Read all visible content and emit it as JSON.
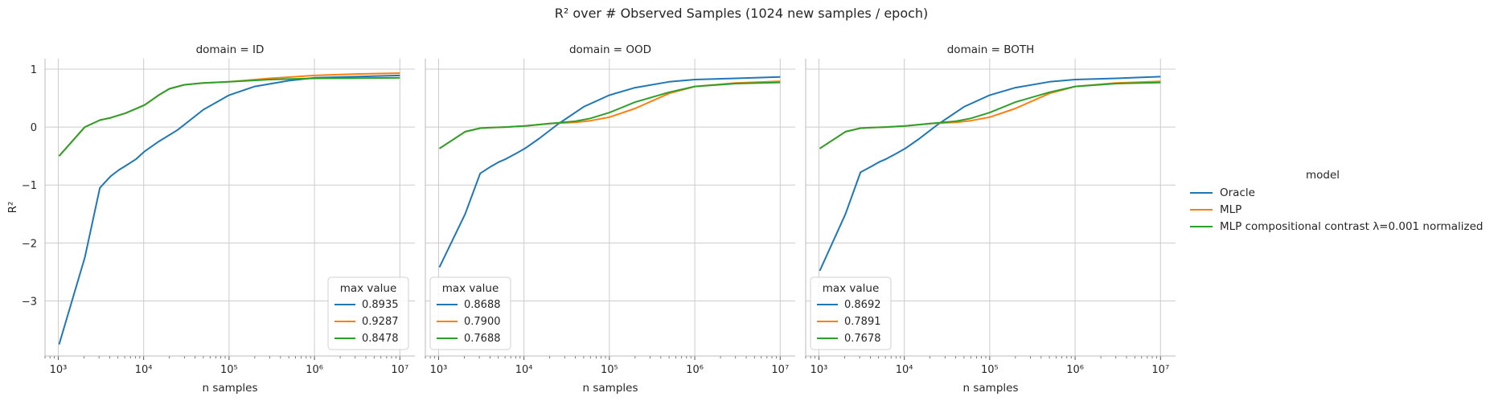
{
  "title": "R² over # Observed Samples (1024 new samples / epoch)",
  "legend": {
    "title": "model",
    "entries": [
      {
        "label": "Oracle",
        "color": "#1f77b4"
      },
      {
        "label": "MLP",
        "color": "#ff7f0e"
      },
      {
        "label": "MLP compositional contrast λ=0.001 normalized",
        "color": "#2ca02c"
      }
    ]
  },
  "colors": {
    "Oracle": "#1f77b4",
    "MLP": "#ff7f0e",
    "MLP compositional contrast λ=0.001 normalized": "#2ca02c",
    "grid": "#cccccc"
  },
  "chart_data": [
    {
      "type": "line",
      "title": "domain = ID",
      "xlabel": "n samples",
      "ylabel": "R²",
      "xscale": "log",
      "xlim": [
        700,
        15000000
      ],
      "ylim": [
        -3.95,
        1.18
      ],
      "xticks": [
        1000,
        10000,
        100000,
        1000000,
        10000000
      ],
      "xtick_labels": [
        "10³",
        "10⁴",
        "10⁵",
        "10⁶",
        "10⁷"
      ],
      "yticks": [
        1,
        0,
        -1,
        -2,
        -3
      ],
      "ytick_labels": [
        "1",
        "0",
        "−1",
        "−2",
        "−3"
      ],
      "grid": true,
      "inner_legend": {
        "title": "max value",
        "placement": "lower right",
        "values": [
          "0.8935",
          "0.9287",
          "0.8478"
        ]
      },
      "series": [
        {
          "name": "Oracle",
          "x": [
            1024,
            2048,
            3072,
            4096,
            5120,
            6144,
            8192,
            10240,
            15000,
            25000,
            50000,
            100000,
            200000,
            500000,
            1000000,
            3000000,
            10000000
          ],
          "y": [
            -3.75,
            -2.25,
            -1.05,
            -0.85,
            -0.74,
            -0.67,
            -0.55,
            -0.42,
            -0.25,
            -0.05,
            0.3,
            0.55,
            0.7,
            0.8,
            0.85,
            0.87,
            0.89
          ]
        },
        {
          "name": "MLP",
          "x": [
            1024,
            2048,
            3072,
            4096,
            6144,
            10240,
            15000,
            20000,
            30000,
            50000,
            100000,
            300000,
            1000000,
            3000000,
            10000000
          ],
          "y": [
            -0.5,
            0.0,
            0.12,
            0.16,
            0.24,
            0.38,
            0.55,
            0.66,
            0.73,
            0.76,
            0.78,
            0.84,
            0.89,
            0.915,
            0.93
          ]
        },
        {
          "name": "MLP compositional contrast λ=0.001 normalized",
          "x": [
            1024,
            2048,
            3072,
            4096,
            6144,
            10240,
            15000,
            20000,
            30000,
            50000,
            100000,
            300000,
            1000000,
            3000000,
            10000000
          ],
          "y": [
            -0.5,
            0.0,
            0.12,
            0.16,
            0.24,
            0.38,
            0.55,
            0.66,
            0.73,
            0.76,
            0.78,
            0.82,
            0.84,
            0.845,
            0.848
          ]
        }
      ]
    },
    {
      "type": "line",
      "title": "domain = OOD",
      "xlabel": "n samples",
      "ylabel": "",
      "xscale": "log",
      "xlim": [
        700,
        15000000
      ],
      "ylim": [
        -3.95,
        1.18
      ],
      "xticks": [
        1000,
        10000,
        100000,
        1000000,
        10000000
      ],
      "xtick_labels": [
        "10³",
        "10⁴",
        "10⁵",
        "10⁶",
        "10⁷"
      ],
      "yticks": [
        1,
        0,
        -1,
        -2,
        -3
      ],
      "ytick_labels": [],
      "grid": true,
      "inner_legend": {
        "title": "max value",
        "placement": "lower left",
        "values": [
          "0.8688",
          "0.7900",
          "0.7688"
        ]
      },
      "series": [
        {
          "name": "Oracle",
          "x": [
            1024,
            2048,
            3072,
            4096,
            5120,
            6144,
            8192,
            10240,
            15000,
            25000,
            50000,
            100000,
            200000,
            500000,
            1000000,
            3000000,
            10000000
          ],
          "y": [
            -2.42,
            -1.5,
            -0.8,
            -0.68,
            -0.6,
            -0.55,
            -0.45,
            -0.37,
            -0.2,
            0.05,
            0.35,
            0.55,
            0.68,
            0.78,
            0.82,
            0.84,
            0.865
          ]
        },
        {
          "name": "MLP",
          "x": [
            1024,
            2048,
            3072,
            4096,
            6144,
            10240,
            20000,
            40000,
            60000,
            100000,
            200000,
            500000,
            1000000,
            3000000,
            10000000
          ],
          "y": [
            -0.37,
            -0.08,
            -0.02,
            -0.01,
            0.0,
            0.02,
            0.06,
            0.08,
            0.11,
            0.17,
            0.32,
            0.58,
            0.7,
            0.76,
            0.79
          ]
        },
        {
          "name": "MLP compositional contrast λ=0.001 normalized",
          "x": [
            1024,
            2048,
            3072,
            4096,
            6144,
            10240,
            20000,
            40000,
            60000,
            100000,
            200000,
            500000,
            1000000,
            3000000,
            10000000
          ],
          "y": [
            -0.37,
            -0.08,
            -0.02,
            -0.01,
            0.0,
            0.02,
            0.06,
            0.1,
            0.15,
            0.25,
            0.43,
            0.6,
            0.7,
            0.75,
            0.769
          ]
        }
      ]
    },
    {
      "type": "line",
      "title": "domain = BOTH",
      "xlabel": "n samples",
      "ylabel": "",
      "xscale": "log",
      "xlim": [
        700,
        15000000
      ],
      "ylim": [
        -3.95,
        1.18
      ],
      "xticks": [
        1000,
        10000,
        100000,
        1000000,
        10000000
      ],
      "xtick_labels": [
        "10³",
        "10⁴",
        "10⁵",
        "10⁶",
        "10⁷"
      ],
      "yticks": [
        1,
        0,
        -1,
        -2,
        -3
      ],
      "ytick_labels": [],
      "grid": true,
      "inner_legend": {
        "title": "max value",
        "placement": "lower left",
        "values": [
          "0.8692",
          "0.7891",
          "0.7678"
        ]
      },
      "series": [
        {
          "name": "Oracle",
          "x": [
            1024,
            2048,
            3072,
            4096,
            5120,
            6144,
            8192,
            10240,
            15000,
            25000,
            50000,
            100000,
            200000,
            500000,
            1000000,
            3000000,
            10000000
          ],
          "y": [
            -2.48,
            -1.5,
            -0.78,
            -0.68,
            -0.6,
            -0.55,
            -0.45,
            -0.37,
            -0.2,
            0.05,
            0.35,
            0.55,
            0.68,
            0.78,
            0.82,
            0.84,
            0.869
          ]
        },
        {
          "name": "MLP",
          "x": [
            1024,
            2048,
            3072,
            4096,
            6144,
            10240,
            20000,
            40000,
            60000,
            100000,
            200000,
            500000,
            1000000,
            3000000,
            10000000
          ],
          "y": [
            -0.37,
            -0.08,
            -0.02,
            -0.01,
            0.0,
            0.02,
            0.06,
            0.08,
            0.11,
            0.17,
            0.32,
            0.58,
            0.7,
            0.76,
            0.789
          ]
        },
        {
          "name": "MLP compositional contrast λ=0.001 normalized",
          "x": [
            1024,
            2048,
            3072,
            4096,
            6144,
            10240,
            20000,
            40000,
            60000,
            100000,
            200000,
            500000,
            1000000,
            3000000,
            10000000
          ],
          "y": [
            -0.37,
            -0.08,
            -0.02,
            -0.01,
            0.0,
            0.02,
            0.06,
            0.1,
            0.15,
            0.25,
            0.43,
            0.6,
            0.7,
            0.75,
            0.768
          ]
        }
      ]
    }
  ]
}
